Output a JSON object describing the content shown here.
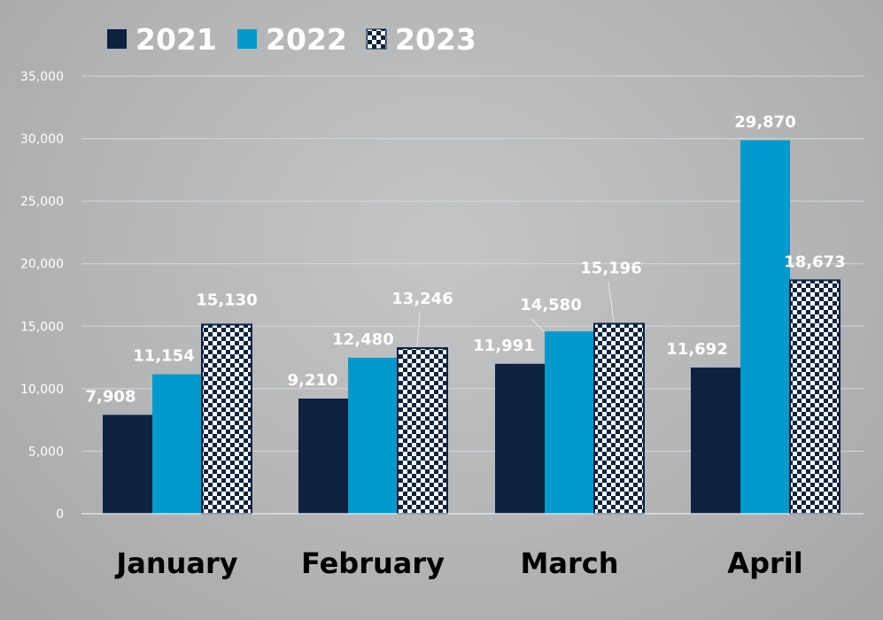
{
  "chart_data": {
    "type": "bar",
    "title": "",
    "xlabel": "",
    "ylabel": "",
    "categories": [
      "January",
      "February",
      "March",
      "April"
    ],
    "series": [
      {
        "name": "2021",
        "values": [
          7908,
          9210,
          11991,
          11692
        ],
        "labels": [
          "7,908",
          "9,210",
          "11,991",
          "11,692"
        ],
        "color": "#0d2240",
        "pattern": "solid"
      },
      {
        "name": "2022",
        "values": [
          11154,
          12480,
          14580,
          29870
        ],
        "labels": [
          "11,154",
          "12,480",
          "14,580",
          "29,870"
        ],
        "color": "#0099cc",
        "pattern": "solid"
      },
      {
        "name": "2023",
        "values": [
          15130,
          13246,
          15196,
          18673
        ],
        "labels": [
          "15,130",
          "13,246",
          "15,196",
          "18,673"
        ],
        "color": "#0d2240",
        "pattern": "checkerboard"
      }
    ],
    "ylim": [
      0,
      35000
    ],
    "yticks": [
      0,
      5000,
      10000,
      15000,
      20000,
      25000,
      30000,
      35000
    ],
    "ytick_labels": [
      "0",
      "5,000",
      "10,000",
      "15,000",
      "20,000",
      "25,000",
      "30,000",
      "35,000"
    ],
    "grid": true,
    "legend_position": "top-left",
    "colors": {
      "gridline": "#d6d8da",
      "axis": "#e8e9ea",
      "text_light": "#ffffff",
      "text_dark": "#000000"
    }
  }
}
